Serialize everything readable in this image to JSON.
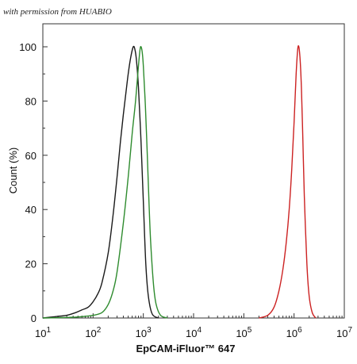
{
  "watermark": "with permission from HUABIO",
  "chart_data": {
    "type": "line",
    "title": "",
    "xlabel": "EpCAM-iFluor™ 647",
    "ylabel": "Count  (%)",
    "xscale": "log",
    "xlim": [
      10,
      10000000
    ],
    "ylim": [
      0,
      100
    ],
    "x_ticks": [
      {
        "value": 10,
        "base": "10",
        "exp": "1"
      },
      {
        "value": 100,
        "base": "10",
        "exp": "2"
      },
      {
        "value": 1000,
        "base": "10",
        "exp": "3"
      },
      {
        "value": 10000,
        "base": "10",
        "exp": "4"
      },
      {
        "value": 100000,
        "base": "10",
        "exp": "5"
      },
      {
        "value": 1000000,
        "base": "10",
        "exp": "6"
      },
      {
        "value": 10000000,
        "base": "10",
        "exp": "7"
      }
    ],
    "y_ticks": [
      0,
      20,
      40,
      60,
      80,
      100
    ],
    "grid": false,
    "legend": "none",
    "series": [
      {
        "color": "#1a1a1a",
        "x": [
          10,
          14,
          20,
          30,
          45,
          60,
          80,
          100,
          125,
          150,
          200,
          250,
          300,
          350,
          400,
          450,
          500,
          560,
          630,
          680,
          730,
          800,
          900,
          1000,
          1120,
          1260,
          1500,
          2000
        ],
        "y": [
          0,
          0.3,
          0.6,
          1,
          2,
          3,
          4,
          6,
          9,
          13,
          24,
          38,
          52,
          65,
          75,
          83,
          90,
          96,
          100,
          99,
          95,
          85,
          65,
          43,
          20,
          8,
          1.5,
          0
        ]
      },
      {
        "color": "#2e8b2e",
        "x": [
          10,
          30,
          60,
          100,
          150,
          200,
          250,
          300,
          400,
          500,
          600,
          700,
          800,
          860,
          900,
          950,
          1000,
          1100,
          1200,
          1300,
          1400,
          1600,
          1800,
          2200,
          3000
        ],
        "y": [
          0,
          0.2,
          0.5,
          1,
          2,
          5,
          10,
          17,
          35,
          52,
          68,
          80,
          93,
          99,
          100,
          98,
          93,
          78,
          60,
          42,
          28,
          12,
          5,
          1,
          0
        ]
      },
      {
        "color": "#cc2222",
        "x": [
          200000,
          300000,
          400000,
          500000,
          600000,
          700000,
          800000,
          900000,
          1000000,
          1100000,
          1200000,
          1300000,
          1400000,
          1500000,
          1600000,
          1800000,
          2000000,
          2300000,
          2700000
        ],
        "y": [
          0,
          1,
          4,
          10,
          18,
          28,
          40,
          55,
          72,
          90,
          100,
          97,
          85,
          65,
          45,
          20,
          8,
          2,
          0
        ]
      }
    ]
  }
}
